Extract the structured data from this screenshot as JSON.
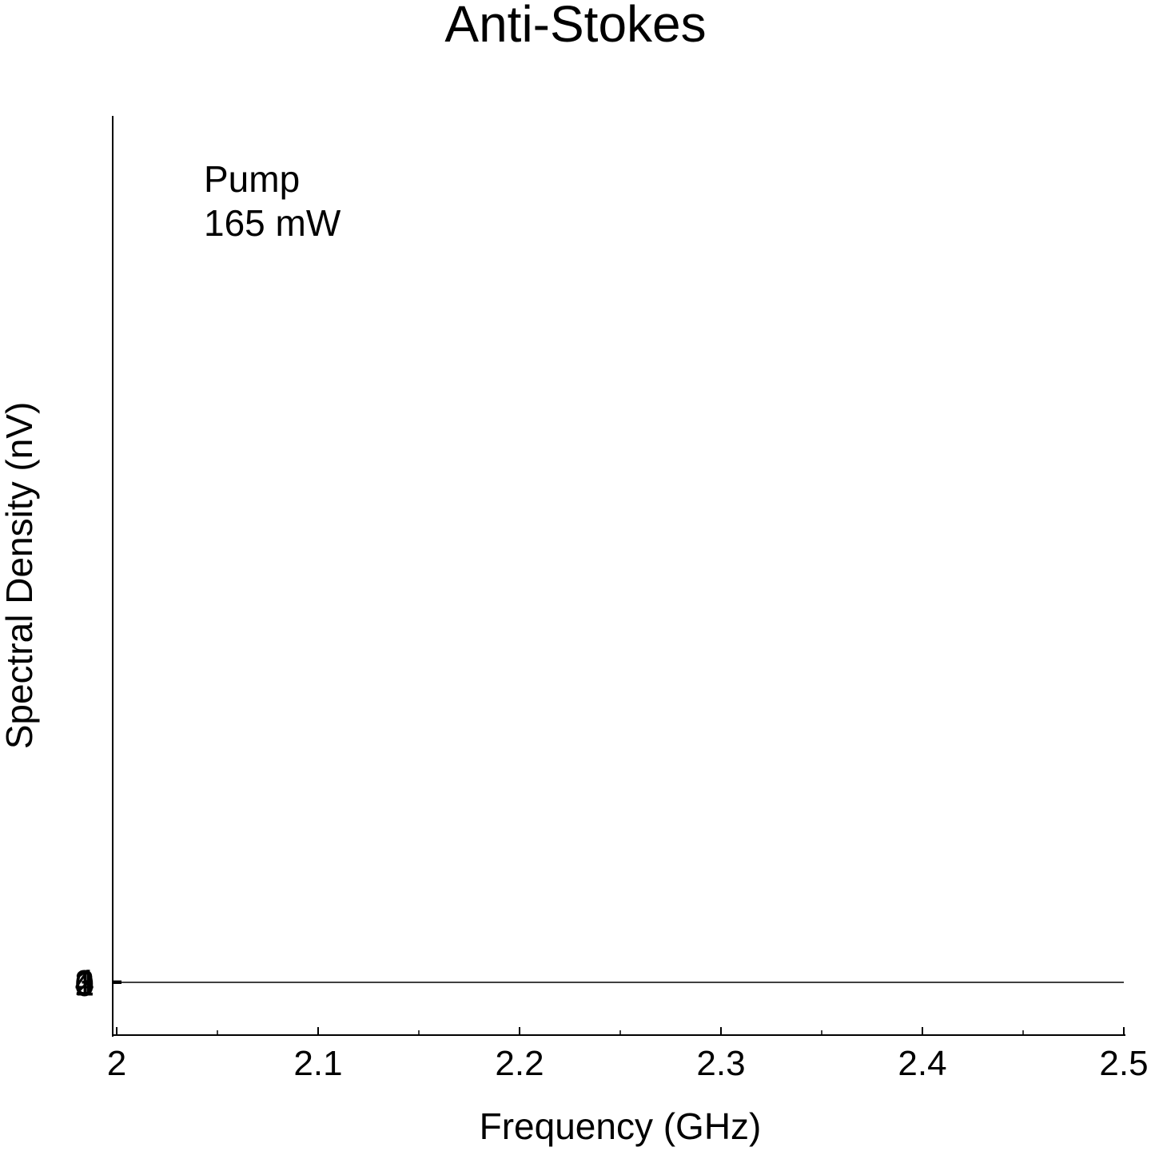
{
  "chart_data": {
    "type": "line",
    "title": "Anti-Stokes",
    "xlabel": "Frequency (GHz)",
    "ylabel": "Spectral Density (nV)",
    "xlim": [
      2.0,
      2.5
    ],
    "x_ticks": [
      "2",
      "2.1",
      "2.2",
      "2.3",
      "2.4",
      "2.5"
    ],
    "x_tick_values": [
      2.0,
      2.1,
      2.2,
      2.3,
      2.4,
      2.5
    ],
    "y_ticks": [
      "0",
      "1",
      "2",
      "3",
      "4"
    ],
    "annotation": [
      "Pump",
      "165 mW"
    ],
    "grid": false,
    "series": [
      {
        "x": [
          2.0,
          2.5
        ],
        "values": [
          0,
          0
        ]
      }
    ],
    "colors": {
      "line": "#000000",
      "axis": "#000000"
    }
  }
}
